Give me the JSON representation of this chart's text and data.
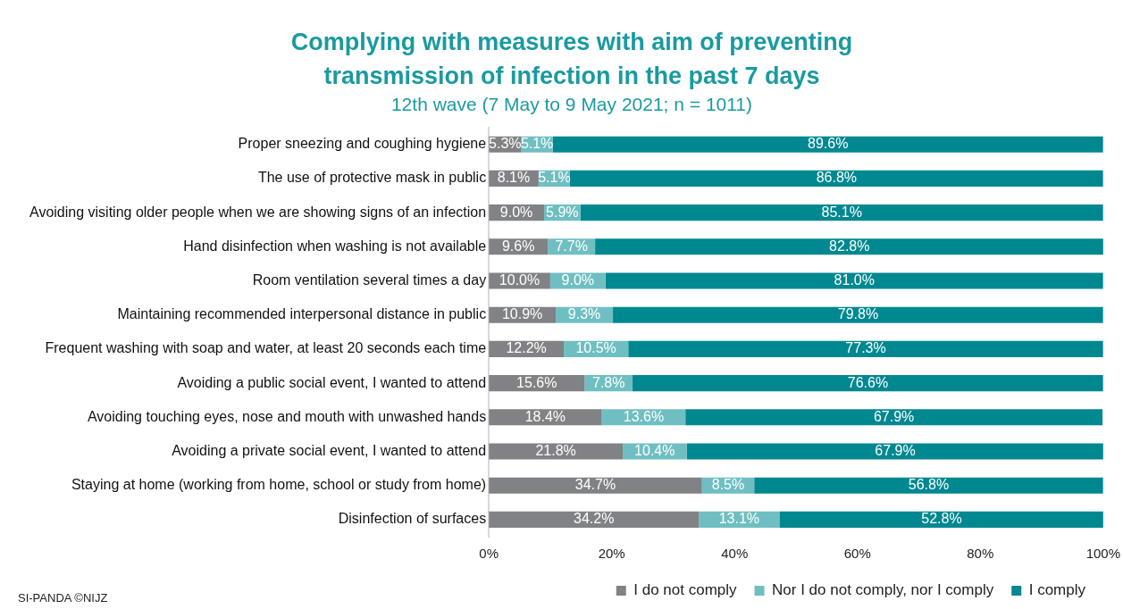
{
  "chart_data": {
    "type": "bar",
    "orientation": "horizontal",
    "stacked": true,
    "title": "Complying with measures with aim of preventing transmission of infection in the past 7 days",
    "subtitle": "12th wave (7 May to 9 May 2021; n = 1011)",
    "annotations": [
      "SI-PANDA ©NIJZ"
    ],
    "categories": [
      "Proper sneezing and coughing hygiene",
      "The use of protective mask in public",
      "Avoiding visiting older people when we are showing signs of an infection",
      "Hand disinfection when washing is not available",
      "Room ventilation several times a day",
      "Maintaining recommended interpersonal distance in public",
      "Frequent washing with soap and water, at least 20 seconds each time",
      "Avoiding a public social event, I wanted to attend",
      "Avoiding touching eyes, nose and mouth with unwashed hands",
      "Avoiding a private social event, I wanted to attend",
      "Staying at home (working from home, school or study from home)",
      "Disinfection of surfaces"
    ],
    "series": [
      {
        "name": "I do not comply",
        "color": "#808285",
        "values": [
          5.3,
          8.1,
          9.0,
          9.6,
          10.0,
          10.9,
          12.2,
          15.6,
          18.4,
          21.8,
          34.7,
          34.2
        ],
        "value_labels": [
          "5.3%",
          "8.1%",
          "9.0%",
          "9.6%",
          "10.0%",
          "10.9%",
          "12.2%",
          "15.6%",
          "18.4%",
          "21.8%",
          "34.7%",
          "34.2%"
        ]
      },
      {
        "name": "Nor I do not comply, nor I comply",
        "color": "#6fbfc2",
        "values": [
          5.1,
          5.1,
          5.9,
          7.7,
          9.0,
          9.3,
          10.5,
          7.8,
          13.6,
          10.4,
          8.5,
          13.1
        ],
        "value_labels": [
          "5.1%",
          "5.1%",
          "5.9%",
          "7.7%",
          "9.0%",
          "9.3%",
          "10.5%",
          "7.8%",
          "13.6%",
          "10.4%",
          "8.5%",
          "13.1%"
        ]
      },
      {
        "name": "I comply",
        "color": "#008891",
        "values": [
          89.6,
          86.8,
          85.1,
          82.8,
          81.0,
          79.8,
          77.3,
          76.6,
          67.9,
          67.9,
          56.8,
          52.8
        ],
        "value_labels": [
          "89.6%",
          "86.8%",
          "85.1%",
          "82.8%",
          "81.0%",
          "79.8%",
          "77.3%",
          "76.6%",
          "67.9%",
          "67.9%",
          "56.8%",
          "52.8%"
        ]
      }
    ],
    "xlim": [
      0,
      100
    ],
    "xticks": [
      {
        "value": 0,
        "label": "0%"
      },
      {
        "value": 20,
        "label": "20%"
      },
      {
        "value": 40,
        "label": "40%"
      },
      {
        "value": 60,
        "label": "60%"
      },
      {
        "value": 80,
        "label": "80%"
      },
      {
        "value": 100,
        "label": "100%"
      }
    ],
    "grid": false,
    "legend": "bottom right"
  }
}
